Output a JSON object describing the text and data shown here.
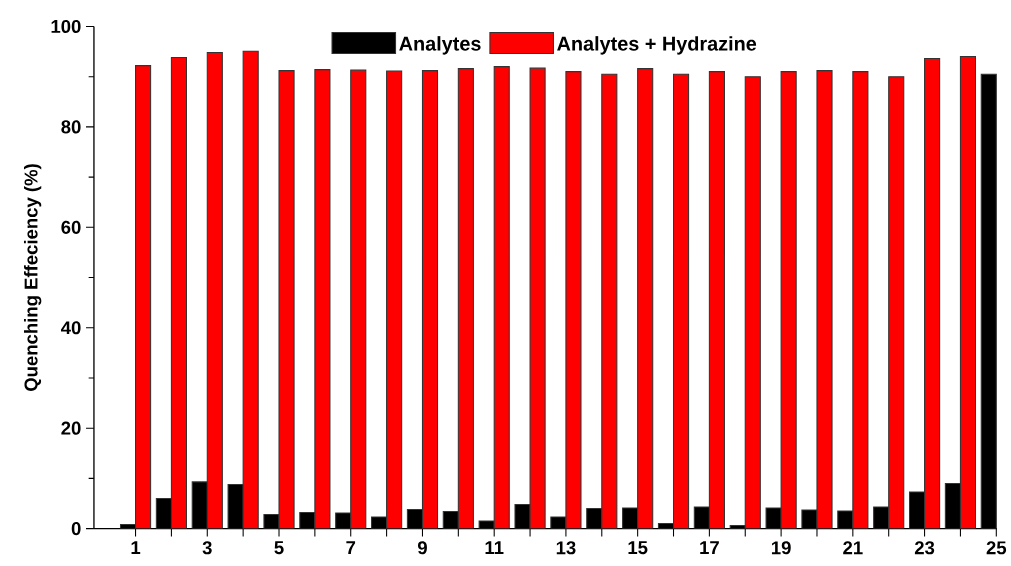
{
  "chart_data": {
    "type": "bar",
    "ylabel": "Quenching Effeciency (%)",
    "categories": [
      "1",
      null,
      "3",
      null,
      "5",
      null,
      "7",
      null,
      "9",
      null,
      "11",
      null,
      "13",
      null,
      "15",
      null,
      "17",
      null,
      "19",
      null,
      "21",
      null,
      "23",
      null,
      "25"
    ],
    "series": [
      {
        "name": "Analytes",
        "color": "#000000",
        "values": [
          0.8,
          6,
          9.3,
          8.8,
          2.8,
          3.2,
          3.1,
          2.3,
          3.8,
          3.4,
          1.5,
          4.8,
          2.3,
          4,
          4.1,
          1,
          4.3,
          0.6,
          4.1,
          3.7,
          3.5,
          4.3,
          7.3,
          9,
          90.5
        ]
      },
      {
        "name": "Analytes + Hydrazine",
        "color": "#ff0000",
        "values": [
          92.2,
          93.8,
          94.8,
          95.1,
          91.2,
          91.4,
          91.3,
          91.1,
          91.2,
          91.6,
          92,
          91.7,
          91,
          90.5,
          91.6,
          90.5,
          91,
          90,
          91,
          91.2,
          91,
          90,
          93.6,
          94,
          null
        ]
      }
    ],
    "ylim": [
      0,
      100
    ],
    "yticks": [
      0,
      20,
      40,
      60,
      80,
      100
    ],
    "legend": "top"
  }
}
